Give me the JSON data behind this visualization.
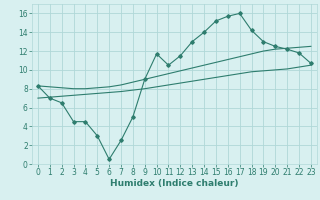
{
  "xlabel": "Humidex (Indice chaleur)",
  "x": [
    0,
    1,
    2,
    3,
    4,
    5,
    6,
    7,
    8,
    9,
    10,
    11,
    12,
    13,
    14,
    15,
    16,
    17,
    18,
    19,
    20,
    21,
    22,
    23
  ],
  "line1": [
    8.3,
    7.0,
    6.5,
    4.5,
    4.5,
    3.0,
    0.5,
    2.5,
    5.0,
    9.0,
    11.7,
    10.5,
    11.5,
    13.0,
    14.0,
    15.2,
    15.7,
    16.0,
    14.2,
    13.0,
    12.5,
    12.2,
    11.8,
    10.7
  ],
  "line2": [
    8.3,
    8.2,
    8.1,
    8.0,
    8.0,
    8.1,
    8.2,
    8.4,
    8.7,
    9.0,
    9.3,
    9.6,
    9.9,
    10.2,
    10.5,
    10.8,
    11.1,
    11.4,
    11.7,
    12.0,
    12.2,
    12.3,
    12.4,
    12.5
  ],
  "line3": [
    7.0,
    7.1,
    7.2,
    7.3,
    7.4,
    7.5,
    7.6,
    7.7,
    7.85,
    8.0,
    8.2,
    8.4,
    8.6,
    8.8,
    9.0,
    9.2,
    9.4,
    9.6,
    9.8,
    9.9,
    10.0,
    10.1,
    10.3,
    10.5
  ],
  "line_color": "#2e7d6e",
  "bg_color": "#d8f0f0",
  "grid_color": "#b0d8d8",
  "ylim": [
    0,
    17
  ],
  "xlim": [
    -0.5,
    23.5
  ],
  "yticks": [
    0,
    2,
    4,
    6,
    8,
    10,
    12,
    14,
    16
  ],
  "xticks": [
    0,
    1,
    2,
    3,
    4,
    5,
    6,
    7,
    8,
    9,
    10,
    11,
    12,
    13,
    14,
    15,
    16,
    17,
    18,
    19,
    20,
    21,
    22,
    23
  ],
  "tick_fontsize": 5.5,
  "xlabel_fontsize": 6.5
}
